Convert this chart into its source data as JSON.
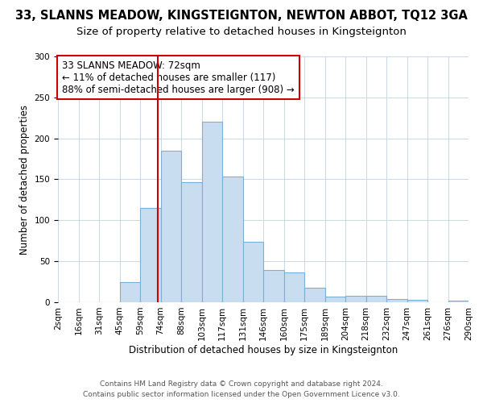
{
  "title": "33, SLANNS MEADOW, KINGSTEIGNTON, NEWTON ABBOT, TQ12 3GA",
  "subtitle": "Size of property relative to detached houses in Kingsteignton",
  "xlabel": "Distribution of detached houses by size in Kingsteignton",
  "ylabel": "Number of detached properties",
  "bin_labels": [
    "2sqm",
    "16sqm",
    "31sqm",
    "45sqm",
    "59sqm",
    "74sqm",
    "88sqm",
    "103sqm",
    "117sqm",
    "131sqm",
    "146sqm",
    "160sqm",
    "175sqm",
    "189sqm",
    "204sqm",
    "218sqm",
    "232sqm",
    "247sqm",
    "261sqm",
    "276sqm",
    "290sqm"
  ],
  "bar_heights": [
    0,
    0,
    0,
    25,
    115,
    185,
    147,
    220,
    153,
    74,
    39,
    36,
    18,
    7,
    8,
    8,
    4,
    3,
    0,
    2
  ],
  "bar_color": "#c9ddf0",
  "bar_edge_color": "#7bafd4",
  "vline_color": "#cc0000",
  "annotation_line1": "33 SLANNS MEADOW: 72sqm",
  "annotation_line2": "← 11% of detached houses are smaller (117)",
  "annotation_line3": "88% of semi-detached houses are larger (908) →",
  "annotation_box_color": "#cc0000",
  "ylim": [
    0,
    300
  ],
  "yticks": [
    0,
    50,
    100,
    150,
    200,
    250,
    300
  ],
  "footer_line1": "Contains HM Land Registry data © Crown copyright and database right 2024.",
  "footer_line2": "Contains public sector information licensed under the Open Government Licence v3.0.",
  "bg_color": "#ffffff",
  "plot_bg_color": "#ffffff",
  "title_fontsize": 10.5,
  "subtitle_fontsize": 9.5,
  "axis_label_fontsize": 8.5,
  "tick_fontsize": 7.5,
  "annotation_fontsize": 8.5,
  "footer_fontsize": 6.5
}
